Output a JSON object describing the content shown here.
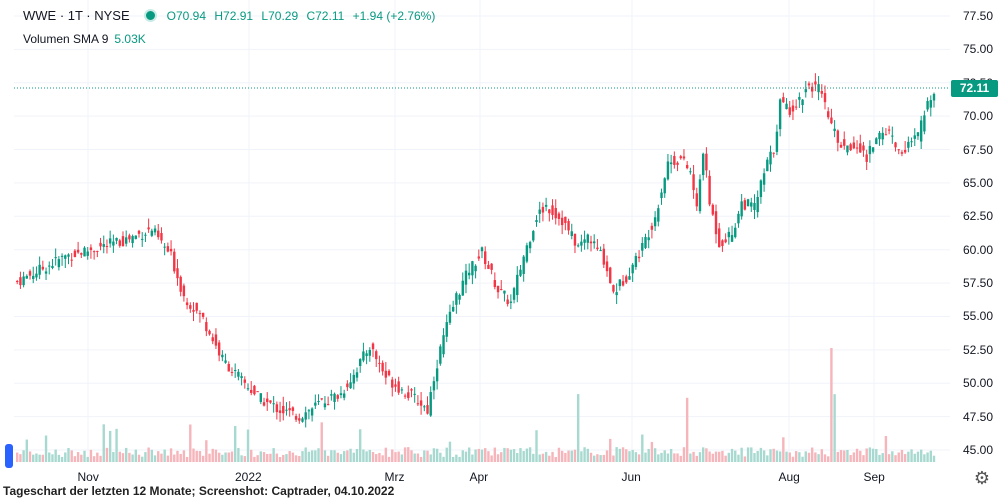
{
  "header": {
    "symbol": "WWE · 1T · NYSE",
    "open": "O70.94",
    "high": "H72.91",
    "low": "L70.29",
    "close": "C72.11",
    "change": "+1.94 (+2.76%)",
    "volume_label": "Volumen SMA 9",
    "volume_value": "5.03K"
  },
  "price_tag": "72.11",
  "caption": "Tageschart der letzten 12 Monate; Screenshot: Captrader, 04.10.2022",
  "colors": {
    "up": "#089981",
    "down": "#f23645",
    "up_vol": "#a8d9d0",
    "down_vol": "#f5b5ba"
  },
  "chart_data": {
    "type": "candlestick",
    "title": "WWE · 1T · NYSE",
    "y_ticks": [
      "77.50",
      "75.00",
      "72.50",
      "70.00",
      "67.50",
      "65.00",
      "62.50",
      "60.00",
      "57.50",
      "55.00",
      "52.50",
      "50.00",
      "47.50",
      "45.00"
    ],
    "ylim": [
      44.2,
      78.2
    ],
    "x_ticks": [
      "Nov",
      "2022",
      "Mrz",
      "Apr",
      "Jun",
      "Aug",
      "Sep"
    ],
    "last_price": 72.11,
    "close_path": [
      [
        0,
        57.6
      ],
      [
        15,
        59.5
      ],
      [
        32,
        60.6
      ],
      [
        42,
        61.5
      ],
      [
        48,
        59.5
      ],
      [
        52,
        56.5
      ],
      [
        58,
        54.8
      ],
      [
        64,
        51.8
      ],
      [
        70,
        50.2
      ],
      [
        76,
        48.8
      ],
      [
        82,
        48.0
      ],
      [
        88,
        47.5
      ],
      [
        95,
        48.6
      ],
      [
        101,
        49.2
      ],
      [
        105,
        50.7
      ],
      [
        110,
        52.8
      ],
      [
        115,
        50.5
      ],
      [
        120,
        49.5
      ],
      [
        125,
        48.7
      ],
      [
        128,
        48.0
      ],
      [
        130,
        50.5
      ],
      [
        133,
        53.5
      ],
      [
        137,
        56.5
      ],
      [
        141,
        58.5
      ],
      [
        145,
        59.8
      ],
      [
        150,
        57.0
      ],
      [
        154,
        56.0
      ],
      [
        158,
        59.5
      ],
      [
        162,
        62.5
      ],
      [
        165,
        63.3
      ],
      [
        170,
        62.2
      ],
      [
        175,
        60.2
      ],
      [
        178,
        61.0
      ],
      [
        183,
        59.3
      ],
      [
        186,
        56.8
      ],
      [
        190,
        58.0
      ],
      [
        195,
        60.2
      ],
      [
        199,
        62.5
      ],
      [
        203,
        66.5
      ],
      [
        207,
        66.8
      ],
      [
        210,
        65.8
      ],
      [
        212,
        63.0
      ],
      [
        214,
        67.5
      ],
      [
        216,
        63.5
      ],
      [
        219,
        60.5
      ],
      [
        223,
        61.2
      ],
      [
        226,
        63.5
      ],
      [
        230,
        63.2
      ],
      [
        234,
        66.5
      ],
      [
        236,
        67.5
      ],
      [
        238,
        71.0
      ],
      [
        241,
        70.5
      ],
      [
        244,
        71.2
      ],
      [
        247,
        72.4
      ],
      [
        250,
        72.0
      ],
      [
        253,
        70.0
      ],
      [
        256,
        68.0
      ],
      [
        259,
        67.5
      ],
      [
        262,
        68.0
      ],
      [
        265,
        66.8
      ],
      [
        268,
        68.5
      ],
      [
        272,
        68.9
      ],
      [
        275,
        67.3
      ],
      [
        278,
        67.8
      ],
      [
        281,
        68.5
      ],
      [
        284,
        70.9
      ],
      [
        286,
        72.11
      ]
    ],
    "volume_sma_last": "5.03K"
  }
}
